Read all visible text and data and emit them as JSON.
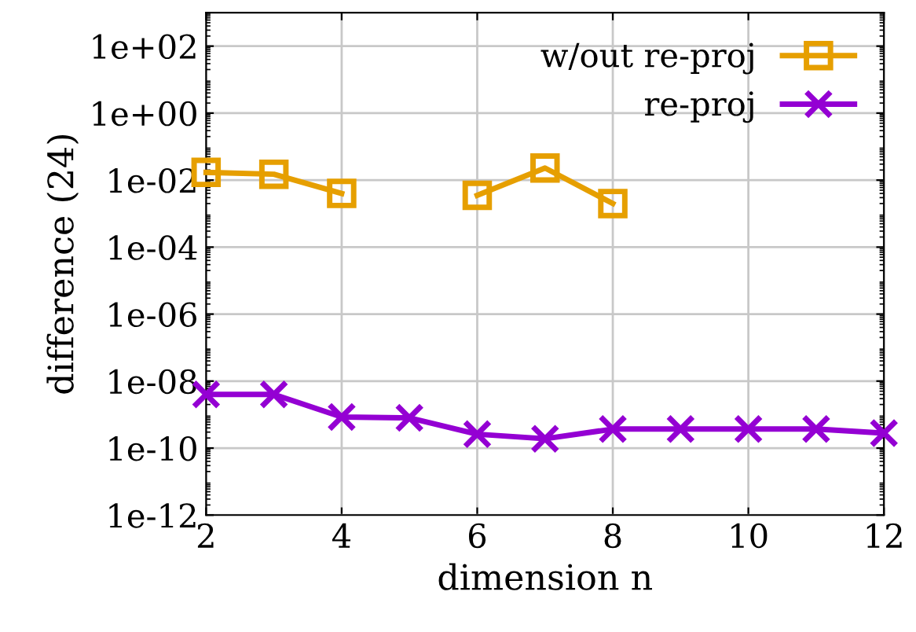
{
  "chart_data": {
    "type": "line",
    "xlabel": "dimension n",
    "ylabel": "difference (24)",
    "x": [
      2,
      3,
      4,
      5,
      6,
      7,
      8,
      9,
      10,
      11,
      12
    ],
    "series": [
      {
        "name": "w/out re-proj",
        "color": "#e69f00",
        "marker": "square",
        "values": [
          0.017,
          0.015,
          0.004,
          null,
          0.0035,
          0.023,
          0.002,
          null,
          null,
          null,
          null
        ]
      },
      {
        "name": "re-proj",
        "color": "#9400d3",
        "marker": "cross",
        "values": [
          4e-09,
          4e-09,
          8.5e-10,
          8e-10,
          2.6e-10,
          1.9e-10,
          3.7e-10,
          3.7e-10,
          3.7e-10,
          3.7e-10,
          2.8e-10
        ]
      }
    ],
    "log": "y",
    "xlim": [
      2,
      12
    ],
    "xticks": [
      2,
      4,
      6,
      8,
      10,
      12
    ],
    "ylim": [
      1e-12,
      1000
    ],
    "yticks": [
      {
        "value": 1e-12,
        "label": "1e-12"
      },
      {
        "value": 1e-10,
        "label": "1e-10"
      },
      {
        "value": 1e-08,
        "label": "1e-08"
      },
      {
        "value": 1e-06,
        "label": "1e-06"
      },
      {
        "value": 0.0001,
        "label": "1e-04"
      },
      {
        "value": 0.01,
        "label": "1e-02"
      },
      {
        "value": 1,
        "label": "1e+00"
      },
      {
        "value": 100,
        "label": "1e+02"
      }
    ],
    "grid": true,
    "legend": "top right",
    "line_style": "solid"
  }
}
